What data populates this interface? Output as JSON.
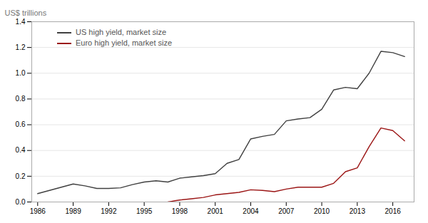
{
  "chart_data": {
    "type": "line",
    "ylabel": "US$ trillions",
    "series": [
      {
        "name": "US high yield, market size",
        "color": "#404040",
        "x": [
          1986,
          1987,
          1988,
          1989,
          1990,
          1991,
          1992,
          1993,
          1994,
          1995,
          1996,
          1997,
          1998,
          1999,
          2000,
          2001,
          2002,
          2003,
          2004,
          2005,
          2006,
          2007,
          2008,
          2009,
          2010,
          2011,
          2012,
          2013,
          2014,
          2015,
          2016,
          2017
        ],
        "values": [
          0.065,
          0.09,
          0.115,
          0.14,
          0.125,
          0.105,
          0.105,
          0.11,
          0.135,
          0.155,
          0.165,
          0.155,
          0.185,
          0.195,
          0.205,
          0.22,
          0.3,
          0.33,
          0.49,
          0.51,
          0.525,
          0.63,
          0.645,
          0.655,
          0.72,
          0.87,
          0.89,
          0.88,
          1.0,
          1.17,
          1.16,
          1.13
        ]
      },
      {
        "name": "Euro high yield, market size",
        "color": "#9b1515",
        "x": [
          1997.0,
          1997.3,
          1997.6,
          1998,
          1999,
          2000,
          2001,
          2002,
          2003,
          2004,
          2005,
          2006,
          2007,
          2008,
          2009,
          2010,
          2011,
          2012,
          2013,
          2014,
          2015,
          2016,
          2017
        ],
        "values": [
          0.0,
          0.005,
          0.01,
          0.015,
          0.025,
          0.035,
          0.055,
          0.065,
          0.075,
          0.095,
          0.09,
          0.08,
          0.1,
          0.115,
          0.115,
          0.115,
          0.145,
          0.235,
          0.265,
          0.43,
          0.575,
          0.555,
          0.475
        ]
      }
    ],
    "xlim": [
      1985.5,
      2017.8
    ],
    "xticks": [
      1986,
      1989,
      1992,
      1995,
      1998,
      2001,
      2004,
      2007,
      2010,
      2013,
      2016
    ],
    "ylim": [
      0,
      1.4
    ],
    "yticks": [
      {
        "value": 0,
        "label": "0.0"
      },
      0.2,
      0.4,
      0.6,
      0.8,
      {
        "value": 1,
        "label": "1.0"
      },
      1.2,
      1.4
    ],
    "grid": true,
    "legend": "upper left"
  }
}
